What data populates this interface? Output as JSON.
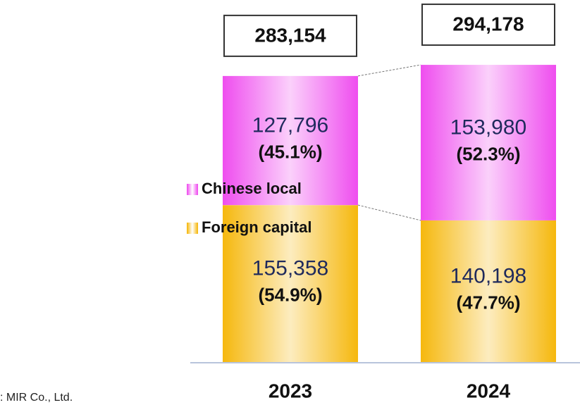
{
  "chart_data": {
    "type": "stacked_bar",
    "categories": [
      "2023",
      "2024"
    ],
    "series": [
      {
        "name": "Foreign capital",
        "color": "#f5b400",
        "values": [
          155358,
          140198
        ],
        "value_labels": [
          "155,358",
          "140,198"
        ],
        "share_labels": [
          "(54.9%)",
          "(47.7%)"
        ]
      },
      {
        "name": "Chinese local",
        "color": "#ee44ee",
        "values": [
          127796,
          153980
        ],
        "value_labels": [
          "127,796",
          "153,980"
        ],
        "share_labels": [
          "(45.1%)",
          "(52.3%)"
        ]
      }
    ],
    "totals": [
      283154,
      294178
    ],
    "total_labels": [
      "283,154",
      "294,178"
    ],
    "ylim": [
      0,
      350000
    ],
    "source": ": MIR Co., Ltd."
  }
}
